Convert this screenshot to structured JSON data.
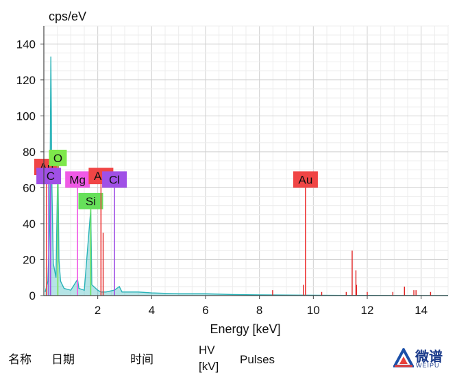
{
  "chart_data": {
    "type": "line",
    "ylabel": "cps/eV",
    "xlabel": "Energy [keV]",
    "xlim": [
      0,
      15.0
    ],
    "ylim": [
      0,
      150
    ],
    "xticks": [
      2,
      4,
      6,
      8,
      10,
      12,
      14
    ],
    "yticks": [
      0,
      20,
      40,
      60,
      80,
      100,
      120,
      140
    ],
    "grid": true,
    "series": [
      {
        "color": "#2ab3b8",
        "points": [
          [
            0.05,
            2
          ],
          [
            0.15,
            8
          ],
          [
            0.22,
            40
          ],
          [
            0.26,
            133
          ],
          [
            0.3,
            60
          ],
          [
            0.35,
            18
          ],
          [
            0.45,
            10
          ],
          [
            0.52,
            75
          ],
          [
            0.56,
            20
          ],
          [
            0.62,
            8
          ],
          [
            0.75,
            4
          ],
          [
            1.0,
            3
          ],
          [
            1.25,
            9
          ],
          [
            1.3,
            4
          ],
          [
            1.5,
            3
          ],
          [
            1.74,
            48
          ],
          [
            1.78,
            6
          ],
          [
            2.0,
            3
          ],
          [
            2.12,
            2
          ],
          [
            2.3,
            2
          ],
          [
            2.62,
            3
          ],
          [
            2.8,
            5
          ],
          [
            2.9,
            2
          ],
          [
            3.5,
            2
          ],
          [
            4.0,
            1.5
          ],
          [
            5.0,
            1
          ],
          [
            6.0,
            1
          ],
          [
            7.0,
            0.6
          ],
          [
            8.0,
            0.4
          ],
          [
            9.0,
            0.3
          ],
          [
            10.0,
            0.2
          ],
          [
            12.0,
            0.1
          ],
          [
            15.0,
            0
          ]
        ]
      },
      {
        "color": "#e02020",
        "peaks": [
          [
            2.12,
            52
          ],
          [
            2.2,
            35
          ],
          [
            8.49,
            3
          ],
          [
            9.63,
            6
          ],
          [
            9.71,
            60
          ],
          [
            10.31,
            2
          ],
          [
            11.22,
            2
          ],
          [
            11.44,
            25
          ],
          [
            11.58,
            14
          ],
          [
            11.6,
            6
          ],
          [
            12.0,
            2
          ],
          [
            12.95,
            2
          ],
          [
            13.38,
            5
          ],
          [
            13.73,
            3
          ],
          [
            13.81,
            3
          ],
          [
            14.35,
            2
          ]
        ]
      }
    ],
    "element_markers": [
      {
        "label": "Au",
        "energy": 0.1,
        "height": 67,
        "color": "#f04545"
      },
      {
        "label": "Cl",
        "energy": 0.18,
        "height": 62,
        "color": "#a050e6"
      },
      {
        "label": "O",
        "energy": 0.52,
        "height": 72,
        "color": "#7ee84b"
      },
      {
        "label": "C",
        "energy": 0.25,
        "height": 62,
        "color": "#a050e6"
      },
      {
        "label": "Mg",
        "energy": 1.25,
        "height": 60,
        "color": "#f05ae6"
      },
      {
        "label": "Si",
        "energy": 1.74,
        "height": 48,
        "color": "#66e05a"
      },
      {
        "label": "Au",
        "energy": 2.12,
        "height": 62,
        "color": "#f04545"
      },
      {
        "label": "Cl",
        "energy": 2.62,
        "height": 60,
        "color": "#a050e6"
      },
      {
        "label": "Au",
        "energy": 9.71,
        "height": 60,
        "color": "#f04545"
      }
    ]
  },
  "footer": {
    "col_name": "名称",
    "col_date": "日期",
    "col_time": "时间",
    "col_hv_line1": "HV",
    "col_hv_line2": "[kV]",
    "col_pulses": "Pulses"
  },
  "logo": {
    "text": "微谱",
    "subtext": "WEIPU",
    "icon": "weipu-triangle-logo-icon"
  }
}
